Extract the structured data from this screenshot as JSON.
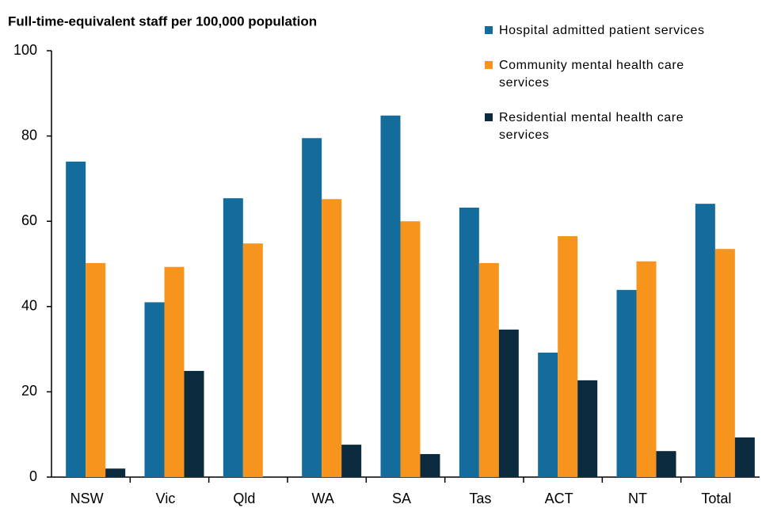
{
  "chart_data": {
    "type": "bar",
    "title": "Full-time-equivalent staff per 100,000 population",
    "categories": [
      "NSW",
      "Vic",
      "Qld",
      "WA",
      "SA",
      "Tas",
      "ACT",
      "NT",
      "Total"
    ],
    "series": [
      {
        "name": "Hospital admitted patient services",
        "color": "#136c9c",
        "values": [
          74,
          41,
          65.4,
          79.5,
          84.8,
          63.2,
          29.2,
          43.9,
          64.1
        ]
      },
      {
        "name": "Community mental health care services",
        "color": "#f7941d",
        "values": [
          50.2,
          49.3,
          54.8,
          65.2,
          60,
          50.2,
          56.5,
          50.6,
          53.5
        ]
      },
      {
        "name": "Residential mental health care services",
        "color": "#0c2a3e",
        "values": [
          2,
          24.9,
          0,
          7.6,
          5.4,
          34.6,
          22.7,
          6.1,
          9.3
        ]
      }
    ],
    "ylim": [
      0,
      100
    ],
    "yticks": [
      0,
      20,
      40,
      60,
      80,
      100
    ],
    "grid": false,
    "legend": "top-right"
  }
}
